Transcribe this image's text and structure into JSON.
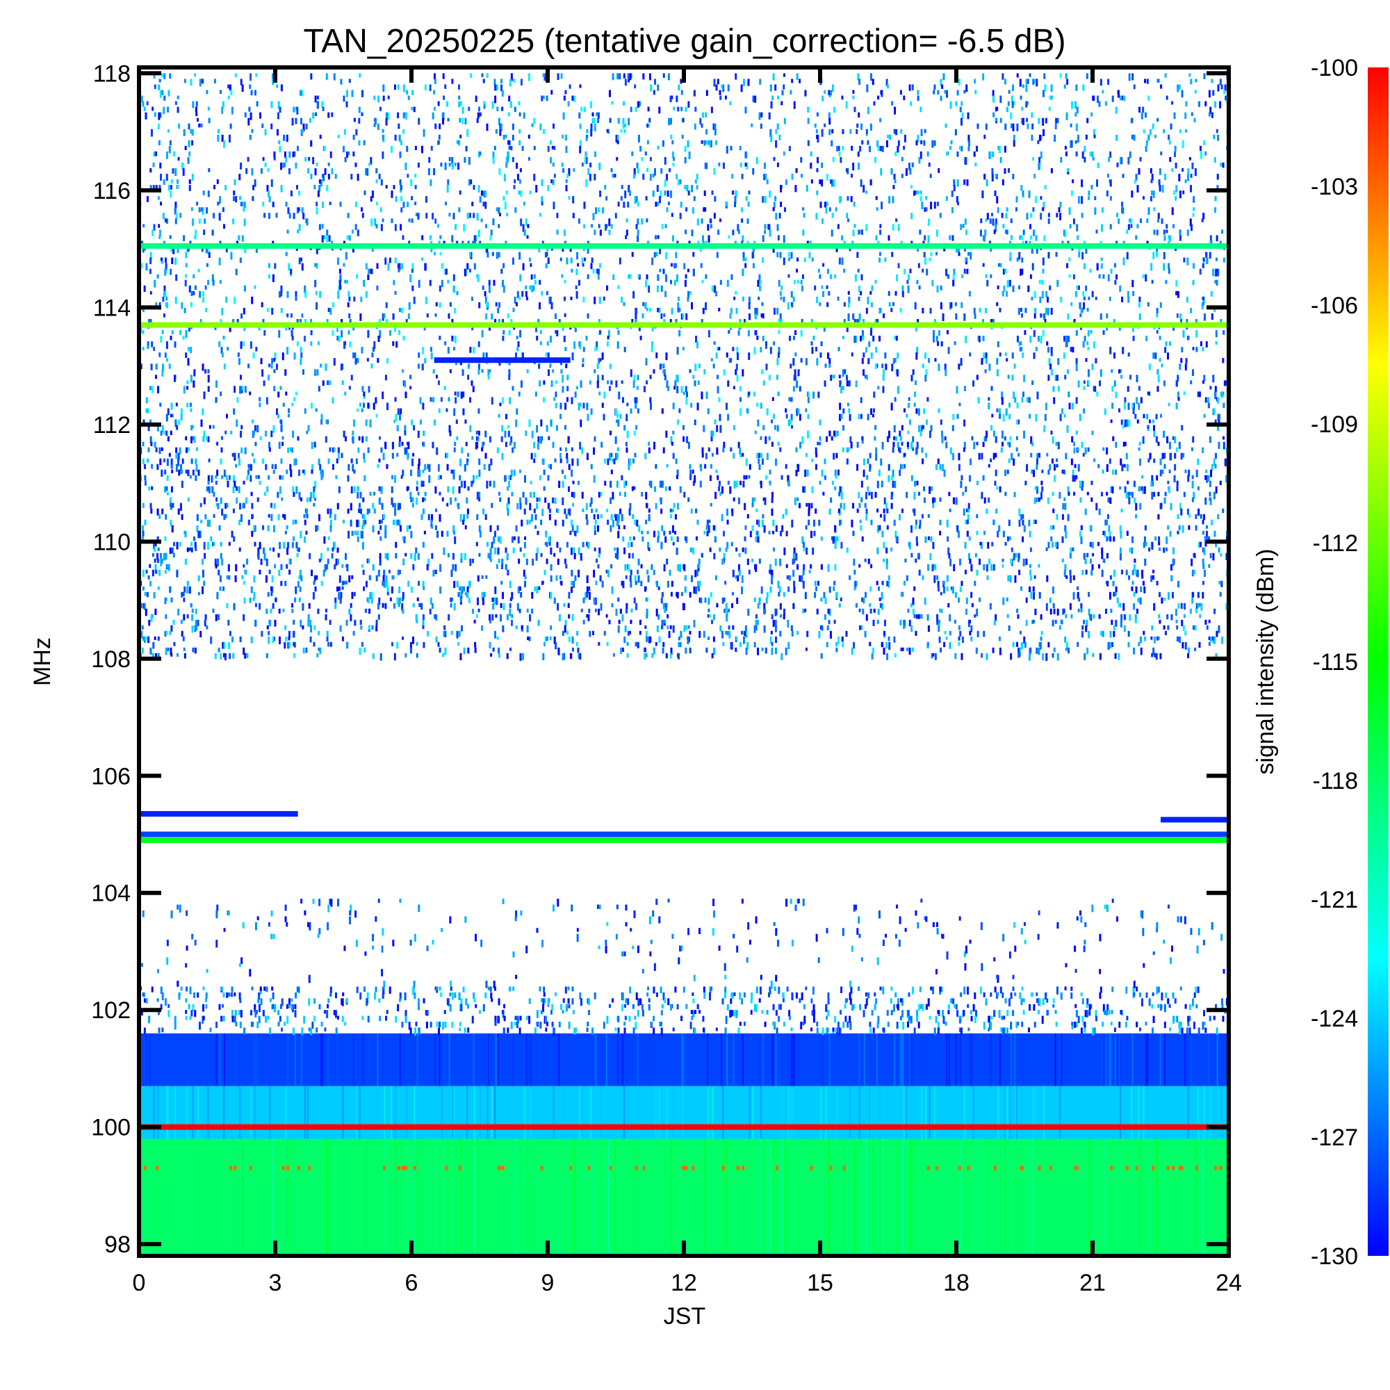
{
  "chart_data": {
    "type": "heatmap",
    "title": "TAN_20250225 (tentative gain_correction= -6.5 dB)",
    "xlabel": "JST",
    "ylabel": "MHz",
    "colorbar_label": "signal intensity (dBm)",
    "xlim": [
      0,
      24
    ],
    "ylim": [
      97.8,
      118.1
    ],
    "x_ticks": [
      0,
      3,
      6,
      9,
      12,
      15,
      18,
      21,
      24
    ],
    "x_tick_labels": [
      "0",
      "3",
      "6",
      "9",
      "12",
      "15",
      "18",
      "21",
      "24"
    ],
    "y_ticks": [
      98,
      100,
      102,
      104,
      106,
      108,
      110,
      112,
      114,
      116,
      118
    ],
    "y_tick_labels": [
      "98",
      "100",
      "102",
      "104",
      "106",
      "108",
      "110",
      "112",
      "114",
      "116",
      "118"
    ],
    "color_range": [
      -130,
      -100
    ],
    "colorbar_ticks": [
      -100,
      -103,
      -106,
      -109,
      -112,
      -115,
      -118,
      -121,
      -124,
      -127,
      -130
    ],
    "colorbar_tick_labels": [
      "-100",
      "-103",
      "-106",
      "-109",
      "-112",
      "-115",
      "-118",
      "-121",
      "-124",
      "-127",
      "-130"
    ],
    "colormap": [
      "#0000ff",
      "#00ffff",
      "#00ff00",
      "#ffff00",
      "#ff0000"
    ],
    "background_color": "#ffffff",
    "frequency_bands": [
      {
        "from_mhz": 97.8,
        "to_mhz": 99.8,
        "approx_dbm": -118,
        "coverage": 1.0
      },
      {
        "from_mhz": 99.8,
        "to_mhz": 100.7,
        "approx_dbm": -124,
        "coverage": 1.0
      },
      {
        "from_mhz": 100.7,
        "to_mhz": 101.6,
        "approx_dbm": -128,
        "coverage": 1.0
      },
      {
        "from_mhz": 101.6,
        "to_mhz": 102.4,
        "approx_dbm": -128.5,
        "coverage": 0.55
      },
      {
        "from_mhz": 102.4,
        "to_mhz": 103.0,
        "approx_dbm": -129,
        "coverage": 0.05
      },
      {
        "from_mhz": 103.0,
        "to_mhz": 103.9,
        "approx_dbm": -129,
        "coverage": 0.12
      },
      {
        "from_mhz": 108.0,
        "to_mhz": 111.8,
        "approx_dbm": -128.5,
        "coverage": 0.45
      },
      {
        "from_mhz": 111.8,
        "to_mhz": 118.0,
        "approx_dbm": -128,
        "coverage": 0.32
      }
    ],
    "persistent_lines": [
      {
        "freq_mhz": 100.0,
        "approx_dbm": -100,
        "x_from": 0,
        "x_to": 24
      },
      {
        "freq_mhz": 99.3,
        "approx_dbm": -103,
        "x_from": 0,
        "x_to": 24,
        "intermittent": true
      },
      {
        "freq_mhz": 104.9,
        "approx_dbm": -116,
        "x_from": 0,
        "x_to": 24
      },
      {
        "freq_mhz": 105.0,
        "approx_dbm": -128,
        "x_from": 0,
        "x_to": 24
      },
      {
        "freq_mhz": 105.35,
        "approx_dbm": -129,
        "x_from": 0,
        "x_to": 3.5
      },
      {
        "freq_mhz": 105.25,
        "approx_dbm": -129,
        "x_from": 22.5,
        "x_to": 24
      },
      {
        "freq_mhz": 113.7,
        "approx_dbm": -111,
        "x_from": 0,
        "x_to": 24
      },
      {
        "freq_mhz": 115.05,
        "approx_dbm": -119,
        "x_from": 0,
        "x_to": 24
      },
      {
        "freq_mhz": 113.1,
        "approx_dbm": -129,
        "x_from": 6.5,
        "x_to": 9.5
      }
    ],
    "grid": false
  }
}
